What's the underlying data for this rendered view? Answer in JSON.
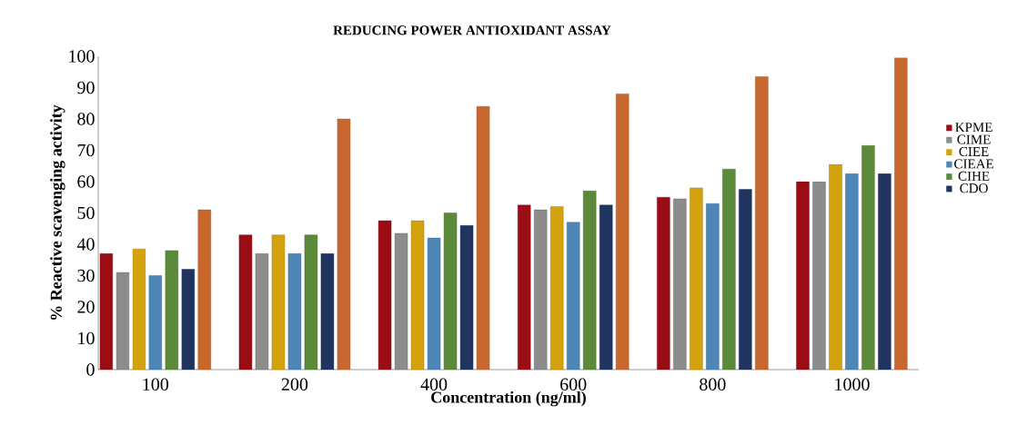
{
  "chart_data": {
    "type": "bar",
    "title": "REDUCING POWER ANTIOXIDANT ASSAY",
    "xlabel": "Concentration (ng/ml)",
    "ylabel": "% Reactive scavenging activity",
    "categories": [
      "100",
      "200",
      "400",
      "600",
      "800",
      "1000"
    ],
    "series": [
      {
        "name": "KPME",
        "color": "#9b0d14",
        "values": [
          37,
          43,
          47.5,
          52.5,
          55,
          60
        ]
      },
      {
        "name": "CIME",
        "color": "#8c8c8c",
        "values": [
          31,
          37,
          43.5,
          51,
          54.5,
          60
        ]
      },
      {
        "name": "CIEE",
        "color": "#d4a20c",
        "values": [
          38.5,
          43,
          47.5,
          52,
          58,
          65.5
        ]
      },
      {
        "name": "CIEAE",
        "color": "#4f86b8",
        "values": [
          30,
          37,
          42,
          47,
          53,
          62.5
        ]
      },
      {
        "name": "CIHE",
        "color": "#5a8a3a",
        "values": [
          38,
          43,
          50,
          57,
          64,
          71.5
        ]
      },
      {
        "name": "CDO",
        "color": "#1f3560",
        "values": [
          32,
          37,
          46,
          52.5,
          57.5,
          62.5
        ]
      },
      {
        "color": "#c8682e",
        "values": [
          51,
          80,
          84,
          88,
          93.5,
          99.5
        ]
      }
    ],
    "ylim": [
      0,
      100
    ],
    "yticks": [
      0,
      10,
      20,
      30,
      40,
      50,
      60,
      70,
      80,
      90,
      100
    ],
    "legend": "right"
  }
}
